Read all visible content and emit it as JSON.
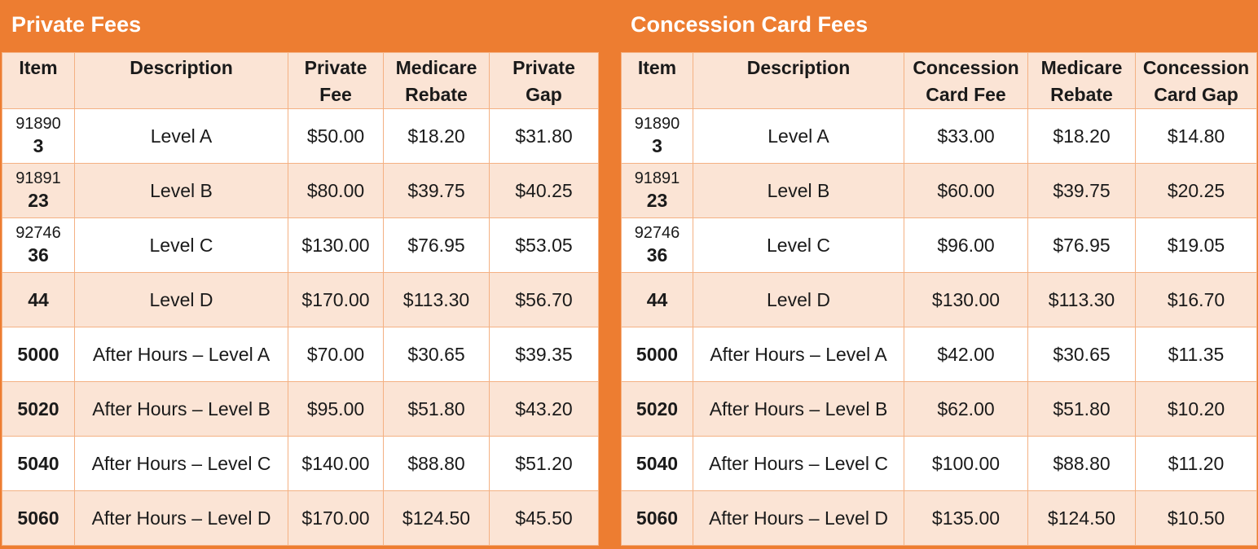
{
  "private": {
    "title": "Private Fees",
    "headers": {
      "item": "Item",
      "description": "Description",
      "fee": [
        "Private",
        "Fee"
      ],
      "rebate": [
        "Medicare",
        "Rebate"
      ],
      "gap": [
        "Private",
        "Gap"
      ]
    },
    "rows": [
      {
        "item_top": "91890",
        "item": "3",
        "description": "Level A",
        "fee": "$50.00",
        "rebate": "$18.20",
        "gap": "$31.80"
      },
      {
        "item_top": "91891",
        "item": "23",
        "description": "Level B",
        "fee": "$80.00",
        "rebate": "$39.75",
        "gap": "$40.25"
      },
      {
        "item_top": "92746",
        "item": "36",
        "description": "Level C",
        "fee": "$130.00",
        "rebate": "$76.95",
        "gap": "$53.05"
      },
      {
        "item_top": "",
        "item": "44",
        "description": "Level D",
        "fee": "$170.00",
        "rebate": "$113.30",
        "gap": "$56.70"
      },
      {
        "item_top": "",
        "item": "5000",
        "description": "After Hours – Level A",
        "fee": "$70.00",
        "rebate": "$30.65",
        "gap": "$39.35"
      },
      {
        "item_top": "",
        "item": "5020",
        "description": "After Hours – Level B",
        "fee": "$95.00",
        "rebate": "$51.80",
        "gap": "$43.20"
      },
      {
        "item_top": "",
        "item": "5040",
        "description": "After Hours – Level C",
        "fee": "$140.00",
        "rebate": "$88.80",
        "gap": "$51.20"
      },
      {
        "item_top": "",
        "item": "5060",
        "description": "After Hours – Level D",
        "fee": "$170.00",
        "rebate": "$124.50",
        "gap": "$45.50"
      }
    ]
  },
  "concession": {
    "title": "Concession Card Fees",
    "headers": {
      "item": "Item",
      "description": "Description",
      "fee": [
        "Concession",
        "Card Fee"
      ],
      "rebate": [
        "Medicare",
        "Rebate"
      ],
      "gap": [
        "Concession",
        "Card Gap"
      ]
    },
    "rows": [
      {
        "item_top": "91890",
        "item": "3",
        "description": "Level A",
        "fee": "$33.00",
        "rebate": "$18.20",
        "gap": "$14.80"
      },
      {
        "item_top": "91891",
        "item": "23",
        "description": "Level B",
        "fee": "$60.00",
        "rebate": "$39.75",
        "gap": "$20.25"
      },
      {
        "item_top": "92746",
        "item": "36",
        "description": "Level C",
        "fee": "$96.00",
        "rebate": "$76.95",
        "gap": "$19.05"
      },
      {
        "item_top": "",
        "item": "44",
        "description": "Level D",
        "fee": "$130.00",
        "rebate": "$113.30",
        "gap": "$16.70"
      },
      {
        "item_top": "",
        "item": "5000",
        "description": "After Hours – Level A",
        "fee": "$42.00",
        "rebate": "$30.65",
        "gap": "$11.35"
      },
      {
        "item_top": "",
        "item": "5020",
        "description": "After Hours – Level B",
        "fee": "$62.00",
        "rebate": "$51.80",
        "gap": "$10.20"
      },
      {
        "item_top": "",
        "item": "5040",
        "description": "After Hours – Level C",
        "fee": "$100.00",
        "rebate": "$88.80",
        "gap": "$11.20"
      },
      {
        "item_top": "",
        "item": "5060",
        "description": "After Hours – Level D",
        "fee": "$135.00",
        "rebate": "$124.50",
        "gap": "$10.50"
      }
    ]
  },
  "colors": {
    "accent": "#ed7d31",
    "row_tint": "#fbe4d5",
    "border": "#f4b183"
  }
}
